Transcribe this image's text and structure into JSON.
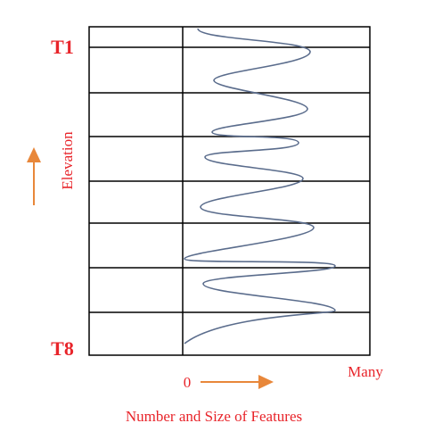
{
  "labels": {
    "top": "T1",
    "bottom": "T8",
    "y_axis": "Elevation",
    "x_start": "0",
    "x_end": "Many",
    "x_axis": "Number and Size  of Features"
  }
}
